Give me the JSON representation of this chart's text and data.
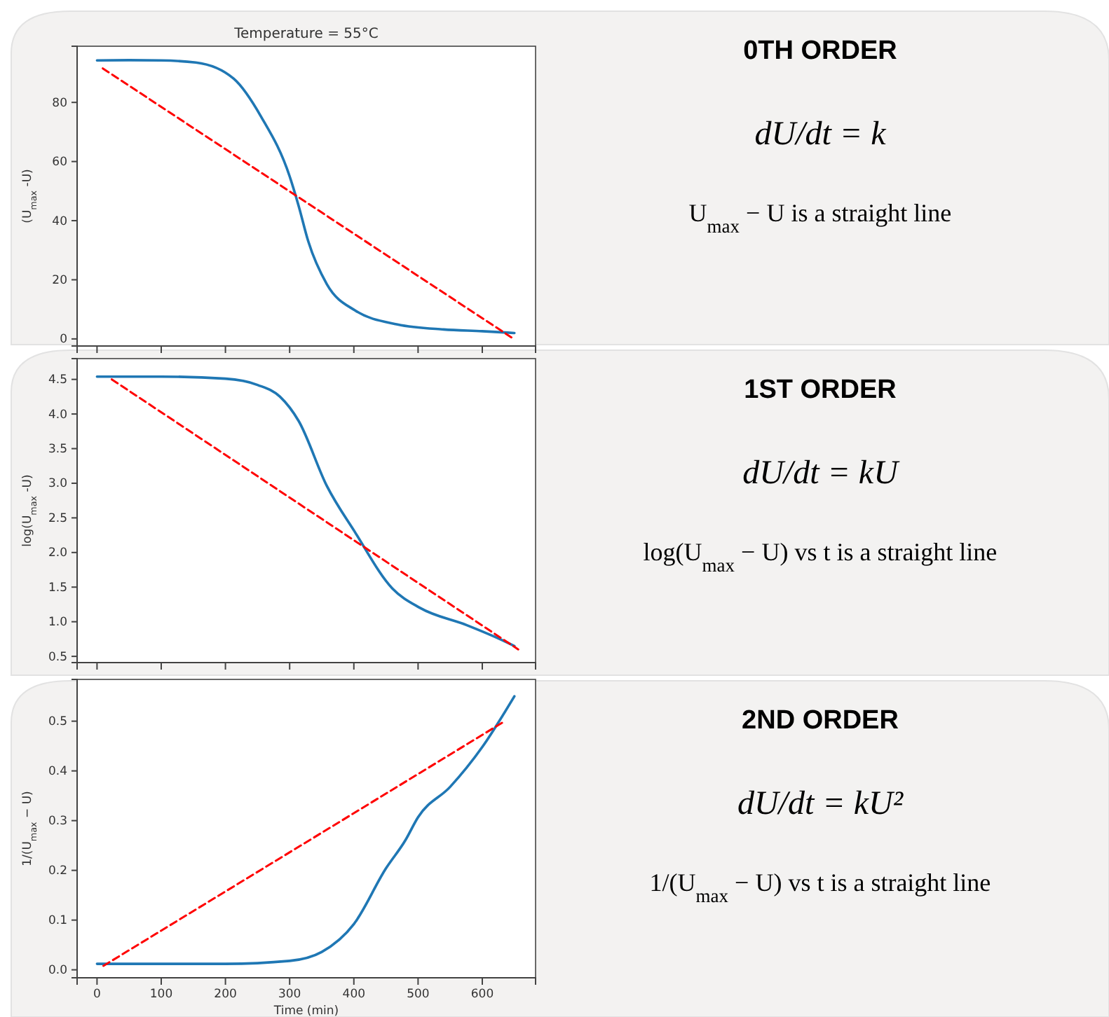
{
  "chart_data": [
    {
      "type": "line",
      "title": "Temperature = 55°C",
      "ylabel": "(U$_{max}$ -U)",
      "xlim": [
        -31,
        683
      ],
      "xticks": [
        0,
        100,
        200,
        300,
        400,
        500,
        600
      ],
      "ylim": [
        -2.4,
        99
      ],
      "yticks": [
        0,
        20,
        40,
        60,
        80
      ],
      "tick_labels": "y",
      "grid": false,
      "marker": "none",
      "series": [
        {
          "color": "#1f77b4",
          "line_style": "solid",
          "x": [
            0,
            50,
            100,
            154,
            213,
            256,
            300,
            314,
            329,
            358,
            402,
            468,
            540,
            600,
            650
          ],
          "values": [
            94.2,
            94.3,
            94.2,
            93.5,
            88,
            75,
            55,
            45,
            33,
            18.5,
            9.6,
            4.9,
            3.2,
            2.6,
            2
          ]
        },
        {
          "color": "#ff0000",
          "line_style": "dashed",
          "x": [
            9,
            649
          ],
          "values": [
            91.5,
            0
          ]
        }
      ]
    },
    {
      "type": "other",
      "title": "0TH ORDER",
      "annotations": [
        "dU/dt = k",
        "U$_{max}$ − U is a straight line"
      ]
    },
    {
      "type": "line",
      "ylabel": "log(U$_{max}$ -U)",
      "xlim": [
        -31,
        683
      ],
      "xticks": [
        0,
        100,
        200,
        300,
        400,
        500,
        600
      ],
      "ylim": [
        0.41,
        4.8
      ],
      "yticks": [
        0.5,
        {
          "value": 1,
          "label": "1.0"
        },
        1.5,
        {
          "value": 2,
          "label": "2.0"
        },
        2.5,
        {
          "value": 3,
          "label": "3.0"
        },
        3.5,
        {
          "value": 4,
          "label": "4.0"
        },
        4.5
      ],
      "tick_labels": "y",
      "grid": false,
      "marker": "none",
      "series": [
        {
          "color": "#1f77b4",
          "line_style": "solid",
          "x": [
            0,
            100,
            200,
            250,
            285,
            314,
            358,
            402,
            460,
            503,
            576,
            620,
            650
          ],
          "values": [
            4.54,
            4.54,
            4.51,
            4.42,
            4.25,
            3.9,
            2.96,
            2.29,
            1.48,
            1.2,
            0.95,
            0.78,
            0.65
          ]
        },
        {
          "color": "#ff0000",
          "line_style": "dashed",
          "x": [
            23,
            656
          ],
          "values": [
            4.5,
            0.6
          ]
        }
      ]
    },
    {
      "type": "other",
      "title": "1ST ORDER",
      "annotations": [
        "dU/dt = kU",
        "log(U$_{max}$ − U) vs t is a straight line"
      ]
    },
    {
      "type": "line",
      "ylabel": "1/(U$_{max}$ − U)",
      "xlabel": "Time (min)",
      "xlim": [
        -31,
        683
      ],
      "xticks": [
        0,
        100,
        200,
        300,
        400,
        500,
        600
      ],
      "ylim": [
        -0.016,
        0.584
      ],
      "yticks": [
        {
          "value": 0,
          "label": "0.0"
        },
        0.1,
        0.2,
        0.3,
        0.4,
        0.5
      ],
      "grid": false,
      "marker": "none",
      "series": [
        {
          "color": "#1f77b4",
          "line_style": "solid",
          "x": [
            0,
            100,
            200,
            300,
            350,
            400,
            450,
            480,
            500,
            550,
            600,
            650
          ],
          "values": [
            0.012,
            0.012,
            0.012,
            0.018,
            0.036,
            0.092,
            0.204,
            0.26,
            0.307,
            0.368,
            0.448,
            0.55
          ]
        },
        {
          "color": "#ff0000",
          "line_style": "dashed",
          "x": [
            10,
            635
          ],
          "values": [
            0.008,
            0.5
          ]
        }
      ]
    },
    {
      "type": "other",
      "title": "2ND ORDER",
      "annotations": [
        "dU/dt = kU²",
        "1/(U$_{max}$ − U)  vs t is a straight line"
      ]
    }
  ]
}
